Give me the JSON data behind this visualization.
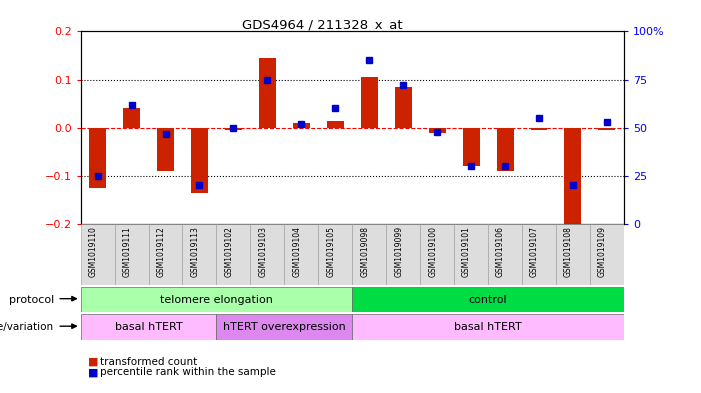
{
  "title": "GDS4964 / 211328_x_at",
  "samples": [
    "GSM1019110",
    "GSM1019111",
    "GSM1019112",
    "GSM1019113",
    "GSM1019102",
    "GSM1019103",
    "GSM1019104",
    "GSM1019105",
    "GSM1019098",
    "GSM1019099",
    "GSM1019100",
    "GSM1019101",
    "GSM1019106",
    "GSM1019107",
    "GSM1019108",
    "GSM1019109"
  ],
  "red_values": [
    -0.125,
    0.04,
    -0.09,
    -0.135,
    -0.005,
    0.145,
    0.01,
    0.015,
    0.105,
    0.085,
    -0.01,
    -0.08,
    -0.09,
    -0.005,
    -0.2,
    -0.005
  ],
  "blue_values_pct": [
    25,
    62,
    47,
    20,
    50,
    75,
    52,
    60,
    85,
    72,
    48,
    30,
    30,
    55,
    20,
    53
  ],
  "ylim_left": [
    -0.2,
    0.2
  ],
  "ylim_right": [
    0,
    100
  ],
  "yticks_left": [
    -0.2,
    -0.1,
    0,
    0.1,
    0.2
  ],
  "yticks_right": [
    0,
    25,
    50,
    75,
    100
  ],
  "protocol_groups": [
    {
      "label": "telomere elongation",
      "start": 0,
      "end": 8,
      "color": "#aaffaa"
    },
    {
      "label": "control",
      "start": 8,
      "end": 16,
      "color": "#00dd44"
    }
  ],
  "genotype_groups": [
    {
      "label": "basal hTERT",
      "start": 0,
      "end": 4,
      "color": "#ffbbff"
    },
    {
      "label": "hTERT overexpression",
      "start": 4,
      "end": 8,
      "color": "#dd88ee"
    },
    {
      "label": "basal hTERT",
      "start": 8,
      "end": 16,
      "color": "#ffbbff"
    }
  ],
  "red_color": "#cc2200",
  "blue_color": "#0000cc",
  "bar_width": 0.5,
  "blue_marker_size": 4,
  "legend_items": [
    {
      "label": "transformed count",
      "color": "#cc2200"
    },
    {
      "label": "percentile rank within the sample",
      "color": "#0000cc"
    }
  ]
}
